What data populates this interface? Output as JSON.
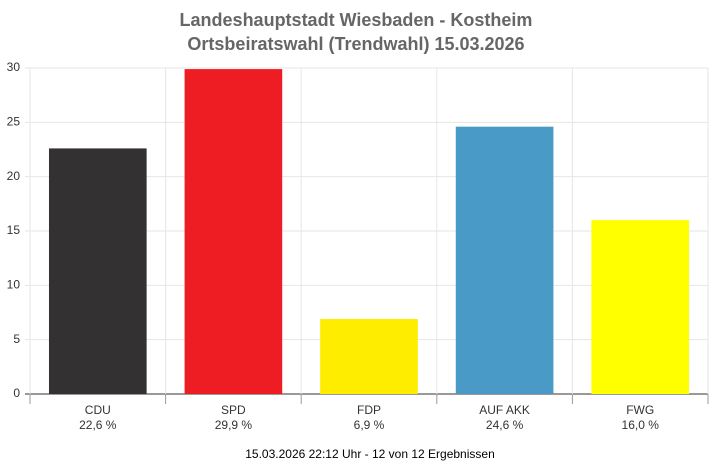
{
  "chart_data": {
    "type": "bar",
    "title": "Landeshauptstadt Wiesbaden - Kostheim",
    "subtitle": "Ortsbeiratswahl (Trendwahl) 15.03.2026",
    "categories": [
      "CDU",
      "SPD",
      "FDP",
      "AUF AKK",
      "FWG"
    ],
    "values": [
      22.6,
      29.9,
      6.9,
      24.6,
      16.0
    ],
    "value_labels": [
      "22,6 %",
      "29,9 %",
      "6,9 %",
      "24,6 %",
      "16,0 %"
    ],
    "colors": [
      "#333132",
      "#ee1d23",
      "#ffed00",
      "#4a9ac8",
      "#ffff00"
    ],
    "ylim": [
      0,
      30
    ],
    "yticks": [
      0,
      5,
      10,
      15,
      20,
      25,
      30
    ],
    "grid": true,
    "note": "15.03.2026 22:12 Uhr - 12 von 12 Ergebnissen"
  }
}
